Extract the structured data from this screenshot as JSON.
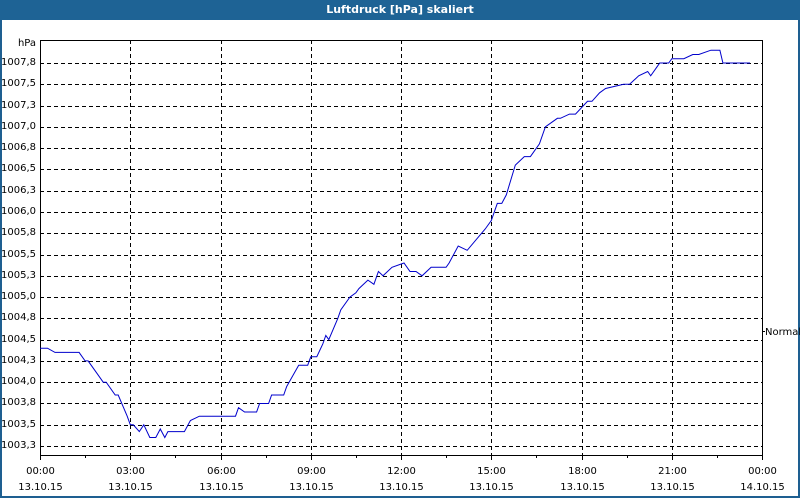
{
  "window": {
    "title": "Luftdruck [hPa] skaliert"
  },
  "colors": {
    "titlebar": "#1e6395",
    "border": "#1e5f91",
    "line": "#0000cc",
    "grid": "#000000"
  },
  "chart_data": {
    "type": "line",
    "title": "Luftdruck [hPa] skaliert",
    "ylabel": "hPa",
    "xlabel": "",
    "ylim": [
      1003.1,
      1008.0
    ],
    "grid": true,
    "right_annotation": {
      "label": "Normal",
      "value": 1004.6
    },
    "y_ticks": [
      "1007,8",
      "1007,5",
      "1007,3",
      "1007,0",
      "1006,8",
      "1006,5",
      "1006,3",
      "1006,0",
      "1005,8",
      "1005,5",
      "1005,3",
      "1005,0",
      "1004,8",
      "1004,5",
      "1004,3",
      "1004,0",
      "1003,8",
      "1003,5",
      "1003,3"
    ],
    "y_tick_values": [
      1007.75,
      1007.5,
      1007.25,
      1007.0,
      1006.75,
      1006.5,
      1006.25,
      1006.0,
      1005.75,
      1005.5,
      1005.25,
      1005.0,
      1004.75,
      1004.5,
      1004.25,
      1004.0,
      1003.75,
      1003.5,
      1003.25
    ],
    "x_ticks": [
      {
        "time": "00:00",
        "date": "13.10.15"
      },
      {
        "time": "03:00",
        "date": "13.10.15"
      },
      {
        "time": "06:00",
        "date": "13.10.15"
      },
      {
        "time": "09:00",
        "date": "13.10.15"
      },
      {
        "time": "12:00",
        "date": "13.10.15"
      },
      {
        "time": "15:00",
        "date": "13.10.15"
      },
      {
        "time": "18:00",
        "date": "13.10.15"
      },
      {
        "time": "21:00",
        "date": "13.10.15"
      },
      {
        "time": "00:00",
        "date": "14.10.15"
      }
    ],
    "series": [
      {
        "name": "Luftdruck",
        "x_hours": [
          0,
          0.25,
          0.5,
          0.6,
          1.3,
          1.5,
          1.6,
          1.9,
          2.1,
          2.2,
          2.5,
          2.6,
          2.9,
          3.0,
          3.1,
          3.3,
          3.45,
          3.65,
          3.85,
          4.0,
          4.15,
          4.25,
          4.45,
          4.8,
          5.0,
          5.3,
          5.5,
          6.0,
          6.5,
          6.6,
          6.8,
          7.2,
          7.3,
          7.6,
          7.7,
          8.1,
          8.2,
          8.6,
          8.9,
          9.0,
          9.2,
          9.4,
          9.5,
          9.6,
          9.9,
          10.0,
          10.3,
          10.5,
          10.6,
          10.9,
          11.1,
          11.25,
          11.4,
          11.7,
          12.1,
          12.3,
          12.5,
          12.7,
          13.0,
          13.3,
          13.5,
          13.6,
          13.9,
          14.2,
          14.8,
          15.0,
          15.2,
          15.35,
          15.5,
          15.8,
          16.1,
          16.3,
          16.6,
          16.8,
          17.2,
          17.3,
          17.6,
          17.8,
          18.2,
          18.35,
          18.6,
          18.8,
          19.4,
          19.6,
          19.9,
          20.2,
          20.3,
          20.5,
          20.6,
          20.9,
          21.0,
          21.2,
          21.4,
          21.7,
          21.9,
          22.3,
          22.6,
          22.7,
          23.6
        ],
        "values": [
          1004.4,
          1004.4,
          1004.35,
          1004.35,
          1004.35,
          1004.25,
          1004.25,
          1004.1,
          1004.0,
          1004.0,
          1003.85,
          1003.85,
          1003.6,
          1003.5,
          1003.5,
          1003.42,
          1003.5,
          1003.35,
          1003.35,
          1003.45,
          1003.35,
          1003.42,
          1003.42,
          1003.42,
          1003.55,
          1003.6,
          1003.6,
          1003.6,
          1003.6,
          1003.7,
          1003.65,
          1003.65,
          1003.75,
          1003.75,
          1003.85,
          1003.85,
          1003.95,
          1004.2,
          1004.2,
          1004.3,
          1004.3,
          1004.45,
          1004.55,
          1004.5,
          1004.75,
          1004.85,
          1005.0,
          1005.05,
          1005.1,
          1005.2,
          1005.15,
          1005.3,
          1005.25,
          1005.35,
          1005.4,
          1005.3,
          1005.3,
          1005.25,
          1005.35,
          1005.35,
          1005.35,
          1005.4,
          1005.6,
          1005.55,
          1005.8,
          1005.9,
          1006.1,
          1006.1,
          1006.2,
          1006.55,
          1006.65,
          1006.65,
          1006.8,
          1007.0,
          1007.1,
          1007.1,
          1007.15,
          1007.15,
          1007.3,
          1007.3,
          1007.4,
          1007.45,
          1007.5,
          1007.5,
          1007.6,
          1007.65,
          1007.6,
          1007.7,
          1007.75,
          1007.75,
          1007.8,
          1007.8,
          1007.8,
          1007.85,
          1007.85,
          1007.9,
          1007.9,
          1007.75,
          1007.75
        ]
      }
    ]
  }
}
